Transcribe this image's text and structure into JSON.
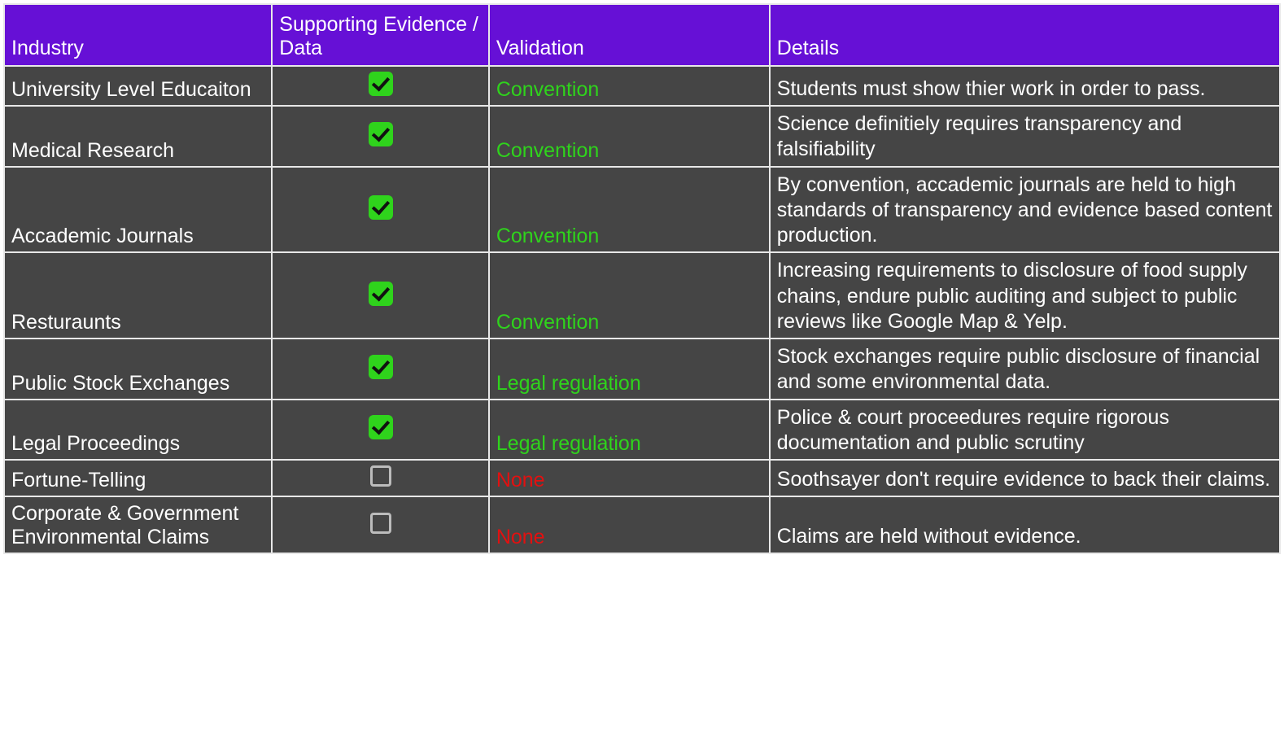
{
  "table": {
    "columns": [
      {
        "key": "industry",
        "label": "Industry",
        "width_pct": 21,
        "align": "left"
      },
      {
        "key": "evidence",
        "label": "Supporting Evidence / Data",
        "width_pct": 17,
        "align": "center"
      },
      {
        "key": "validation",
        "label": "Validation",
        "width_pct": 22,
        "align": "left"
      },
      {
        "key": "details",
        "label": "Details",
        "width_pct": 40,
        "align": "left"
      }
    ],
    "rows": [
      {
        "industry": "University Level Educaiton",
        "evidence_checked": true,
        "validation": "Convention",
        "validation_style": "green",
        "details": "Students must show thier work in order to pass."
      },
      {
        "industry": "Medical Research",
        "evidence_checked": true,
        "validation": "Convention",
        "validation_style": "green",
        "details": "Science definitiely requires transparency and falsifiability"
      },
      {
        "industry": "Accademic Journals",
        "evidence_checked": true,
        "validation": "Convention",
        "validation_style": "green",
        "details": "By convention, accademic journals are held to high standards of transparency and evidence based content production."
      },
      {
        "industry": "Resturaunts",
        "evidence_checked": true,
        "validation": "Convention",
        "validation_style": "green",
        "details": "Increasing requirements to disclosure of food supply chains, endure public auditing and subject to public reviews like Google Map & Yelp."
      },
      {
        "industry": "Public Stock Exchanges",
        "evidence_checked": true,
        "validation": "Legal regulation",
        "validation_style": "green",
        "details": "Stock exchanges require public disclosure of financial and some environmental data."
      },
      {
        "industry": "Legal Proceedings",
        "evidence_checked": true,
        "validation": "Legal regulation",
        "validation_style": "green",
        "details": "Police & court proceedures require rigorous documentation and public scrutiny"
      },
      {
        "industry": "Fortune-Telling",
        "evidence_checked": false,
        "validation": "None",
        "validation_style": "red",
        "details": "Soothsayer don't require evidence to back their claims."
      },
      {
        "industry": "Corporate & Government Environmental Claims",
        "evidence_checked": false,
        "validation": "None",
        "validation_style": "red",
        "details": "Claims are held without evidence."
      }
    ],
    "styling": {
      "header_bg": "#6610d6",
      "header_text_color": "#ffffff",
      "cell_bg": "#454545",
      "cell_text_color": "#ffffff",
      "border_color": "#e8e8e8",
      "checked_color": "#2fd31c",
      "unchecked_border_color": "#bcbcbc",
      "validation_green": "#2fd31c",
      "validation_red": "#e21010",
      "font_family": "Arial",
      "font_size_pt": 19
    }
  }
}
